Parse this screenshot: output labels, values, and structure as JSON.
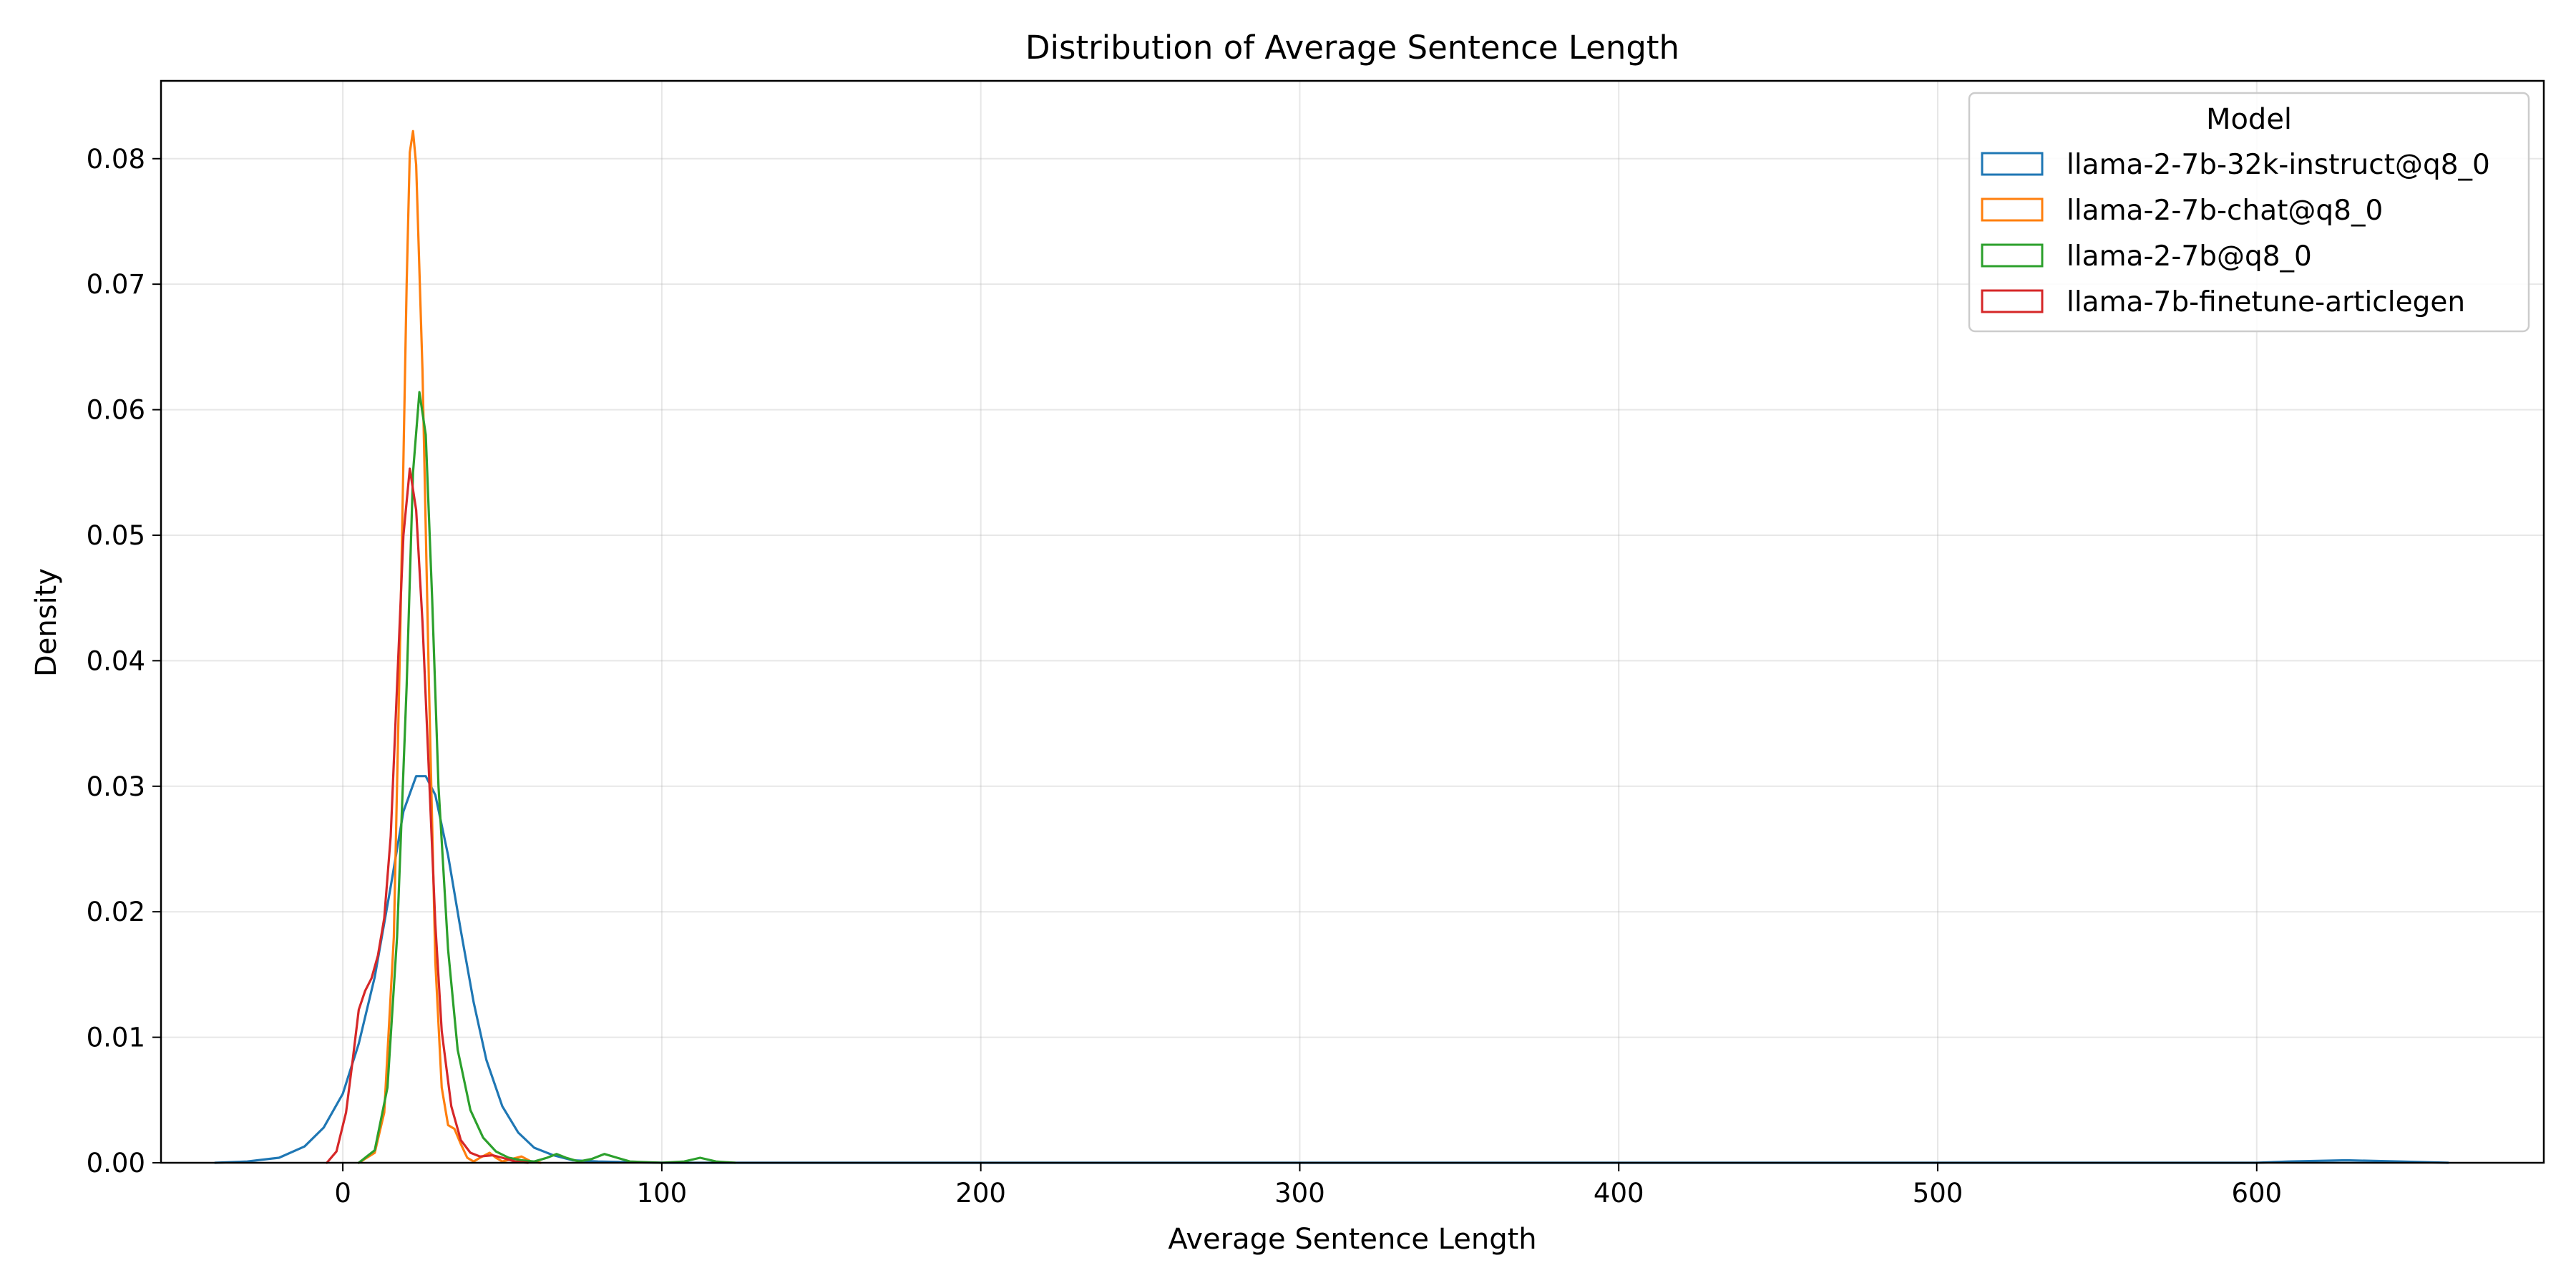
{
  "chart_data": {
    "type": "line",
    "title": "Distribution of Average Sentence Length",
    "xlabel": "Average Sentence Length",
    "ylabel": "Density",
    "xlim": [
      -57,
      690
    ],
    "ylim": [
      0,
      0.0862
    ],
    "xticks": [
      0,
      100,
      200,
      300,
      400,
      500,
      600
    ],
    "yticks": [
      0.0,
      0.01,
      0.02,
      0.03,
      0.04,
      0.05,
      0.06,
      0.07,
      0.08
    ],
    "ytick_labels": [
      "0.00",
      "0.01",
      "0.02",
      "0.03",
      "0.04",
      "0.05",
      "0.06",
      "0.07",
      "0.08"
    ],
    "grid": true,
    "legend": {
      "title": "Model",
      "position": "top-right"
    },
    "series": [
      {
        "name": "llama-2-7b-32k-instruct@q8_0",
        "color": "#1f77b4",
        "points": [
          [
            -40,
            0
          ],
          [
            -30,
            0.0001
          ],
          [
            -20,
            0.0004
          ],
          [
            -12,
            0.0013
          ],
          [
            -6,
            0.0028
          ],
          [
            0,
            0.0055
          ],
          [
            5,
            0.0095
          ],
          [
            10,
            0.0148
          ],
          [
            15,
            0.022
          ],
          [
            19,
            0.028
          ],
          [
            23,
            0.0308
          ],
          [
            26,
            0.0308
          ],
          [
            29,
            0.0293
          ],
          [
            33,
            0.0245
          ],
          [
            37,
            0.0185
          ],
          [
            41,
            0.0128
          ],
          [
            45,
            0.0082
          ],
          [
            50,
            0.0045
          ],
          [
            55,
            0.0024
          ],
          [
            60,
            0.0012
          ],
          [
            66,
            0.0006
          ],
          [
            72,
            0.0002
          ],
          [
            80,
            0.0001
          ],
          [
            100,
            0
          ],
          [
            600,
            0
          ],
          [
            610,
            0.0001
          ],
          [
            628,
            0.0002
          ],
          [
            645,
            0.0001
          ],
          [
            660,
            0
          ]
        ]
      },
      {
        "name": "llama-2-7b-chat@q8_0",
        "color": "#ff7f0e",
        "points": [
          [
            5,
            0
          ],
          [
            10,
            0.0008
          ],
          [
            13,
            0.004
          ],
          [
            16,
            0.018
          ],
          [
            18,
            0.042
          ],
          [
            20,
            0.07
          ],
          [
            21,
            0.0805
          ],
          [
            22,
            0.0822
          ],
          [
            23,
            0.0795
          ],
          [
            25,
            0.063
          ],
          [
            27,
            0.038
          ],
          [
            29,
            0.016
          ],
          [
            31,
            0.006
          ],
          [
            33,
            0.003
          ],
          [
            35,
            0.0027
          ],
          [
            37,
            0.0015
          ],
          [
            39,
            0.0004
          ],
          [
            41,
            0.0001
          ],
          [
            43,
            0.0004
          ],
          [
            46,
            0.0008
          ],
          [
            48,
            0.0004
          ],
          [
            50,
            0.0001
          ],
          [
            53,
            0.0003
          ],
          [
            56,
            0.0005
          ],
          [
            59,
            0.0001
          ],
          [
            62,
            0
          ]
        ]
      },
      {
        "name": "llama-2-7b@q8_0",
        "color": "#2ca02c",
        "points": [
          [
            5,
            0
          ],
          [
            10,
            0.001
          ],
          [
            14,
            0.006
          ],
          [
            17,
            0.018
          ],
          [
            20,
            0.038
          ],
          [
            22,
            0.055
          ],
          [
            24,
            0.0614
          ],
          [
            26,
            0.058
          ],
          [
            28,
            0.045
          ],
          [
            30,
            0.03
          ],
          [
            33,
            0.017
          ],
          [
            36,
            0.009
          ],
          [
            40,
            0.0042
          ],
          [
            44,
            0.002
          ],
          [
            48,
            0.0009
          ],
          [
            52,
            0.0004
          ],
          [
            56,
            0.0002
          ],
          [
            60,
            0.0001
          ],
          [
            64,
            0.0004
          ],
          [
            67,
            0.0007
          ],
          [
            70,
            0.0004
          ],
          [
            74,
            0.0001
          ],
          [
            78,
            0.0003
          ],
          [
            82,
            0.0007
          ],
          [
            86,
            0.0004
          ],
          [
            90,
            0.0001
          ],
          [
            100,
            0
          ],
          [
            107,
            0.0001
          ],
          [
            112,
            0.0004
          ],
          [
            117,
            0.0001
          ],
          [
            123,
            0
          ]
        ]
      },
      {
        "name": "llama-7b-finetune-articlegen",
        "color": "#d62728",
        "points": [
          [
            -5,
            0
          ],
          [
            -2,
            0.0009
          ],
          [
            1,
            0.004
          ],
          [
            3,
            0.008
          ],
          [
            5,
            0.0122
          ],
          [
            7,
            0.0137
          ],
          [
            9,
            0.0147
          ],
          [
            11,
            0.0165
          ],
          [
            13,
            0.0195
          ],
          [
            15,
            0.026
          ],
          [
            17,
            0.038
          ],
          [
            19,
            0.05
          ],
          [
            21,
            0.0553
          ],
          [
            23,
            0.052
          ],
          [
            25,
            0.043
          ],
          [
            27,
            0.031
          ],
          [
            29,
            0.019
          ],
          [
            31,
            0.0105
          ],
          [
            34,
            0.0045
          ],
          [
            37,
            0.0018
          ],
          [
            40,
            0.0008
          ],
          [
            43,
            0.0005
          ],
          [
            47,
            0.0006
          ],
          [
            50,
            0.0004
          ],
          [
            54,
            0.0001
          ],
          [
            58,
            0
          ]
        ]
      }
    ]
  }
}
